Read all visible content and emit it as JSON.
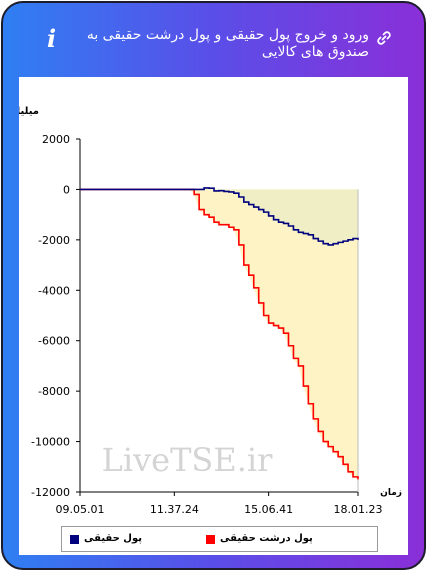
{
  "header": {
    "title": "ورود و خروج پول حقیقی و پول درشت حقیقی به صندوق های کالایی",
    "info_icon": "info-icon",
    "link_icon": "link-icon"
  },
  "colors": {
    "series1": "#00007f",
    "series2": "#ff0000",
    "fill_series1": "#efeec5",
    "fill_series2": "#fdf3c4"
  },
  "chart_data": {
    "type": "area",
    "title": "",
    "ylabel": "میلیارد تومان",
    "xlabel": "زمان",
    "ylim": [
      -12000,
      2000
    ],
    "yticks": [
      2000,
      0,
      -2000,
      -4000,
      -6000,
      -8000,
      -10000,
      -12000
    ],
    "xticks": [
      "09.05.01",
      "11.37.24",
      "15.06.41",
      "18.01.23"
    ],
    "watermark": "LiveTSE.ir",
    "grid": false,
    "legend_position": "bottom",
    "x_count": 57,
    "series": [
      {
        "name": "پول حقیقی",
        "color": "#00007f",
        "values": [
          0,
          0,
          0,
          0,
          0,
          0,
          0,
          0,
          0,
          0,
          0,
          0,
          0,
          0,
          0,
          0,
          0,
          0,
          0,
          0,
          0,
          0,
          0,
          0,
          0,
          60,
          50,
          -60,
          -50,
          -80,
          -100,
          -150,
          -300,
          -500,
          -600,
          -700,
          -800,
          -900,
          -1050,
          -1200,
          -1300,
          -1350,
          -1450,
          -1600,
          -1700,
          -1750,
          -1800,
          -1950,
          -2050,
          -2150,
          -2200,
          -2150,
          -2100,
          -2050,
          -2000,
          -1950,
          -2000
        ]
      },
      {
        "name": "پول درشت حقیقی",
        "color": "#ff0000",
        "values": [
          0,
          0,
          0,
          0,
          0,
          0,
          0,
          0,
          0,
          0,
          0,
          0,
          0,
          0,
          0,
          0,
          0,
          0,
          0,
          0,
          0,
          0,
          0,
          -200,
          -800,
          -1000,
          -1100,
          -1300,
          -1400,
          -1400,
          -1500,
          -1600,
          -2200,
          -3000,
          -3400,
          -3900,
          -4500,
          -5000,
          -5300,
          -5400,
          -5500,
          -5700,
          -6200,
          -6700,
          -7000,
          -7800,
          -8500,
          -9100,
          -9600,
          -10000,
          -10200,
          -10400,
          -10600,
          -10900,
          -11200,
          -11400,
          -11500
        ]
      }
    ]
  }
}
